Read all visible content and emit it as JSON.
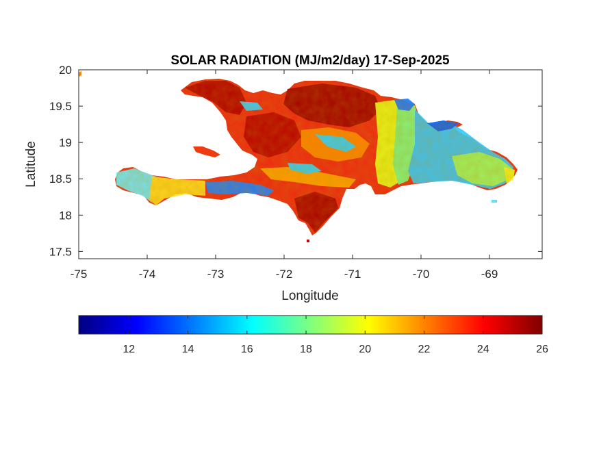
{
  "figure": {
    "title": "SOLAR RADIATION (MJ/m2/day) 17-Sep-2025",
    "xlabel": "Longitude",
    "ylabel": "Latitude",
    "xlim": [
      -75,
      -68.23
    ],
    "ylim": [
      17.4,
      20
    ],
    "xticks": [
      "-75",
      "-74",
      "-73",
      "-72",
      "-71",
      "-70",
      "-69"
    ],
    "yticks": [
      "17.5",
      "18",
      "18.5",
      "19",
      "19.5",
      "20"
    ]
  },
  "colorbar": {
    "colormap": "jet",
    "range": [
      10.3,
      26
    ],
    "ticks": [
      "12",
      "14",
      "16",
      "18",
      "20",
      "22",
      "24",
      "26"
    ],
    "colors": [
      "#00007f",
      "#0000ff",
      "#007fff",
      "#00ffff",
      "#7fff7f",
      "#ffff00",
      "#ff7f00",
      "#ff0000",
      "#7f0000"
    ]
  },
  "chart_data": {
    "type": "heatmap",
    "title": "SOLAR RADIATION (MJ/m2/day) 17-Sep-2025",
    "xlabel": "Longitude",
    "ylabel": "Latitude",
    "x_range": [
      -75,
      -68.23
    ],
    "y_range": [
      17.4,
      20
    ],
    "value_range": [
      10.3,
      26
    ],
    "colormap": "jet",
    "grid": false,
    "regions": [
      {
        "name": "",
        "lon": -72.3,
        "lat": 19.3,
        "value": 24.5
      },
      {
        "name": "",
        "lon": -71.5,
        "lat": 19.5,
        "value": 25.5
      },
      {
        "name": "",
        "lon": -72.7,
        "lat": 18.9,
        "value": 23.5
      },
      {
        "name": "",
        "lon": -72.0,
        "lat": 18.5,
        "value": 22.5
      },
      {
        "name": "",
        "lon": -71.4,
        "lat": 17.9,
        "value": 25.0
      },
      {
        "name": "",
        "lon": -73.0,
        "lat": 19.8,
        "value": 24.0
      },
      {
        "name": "",
        "lon": -73.2,
        "lat": 18.4,
        "value": 15.5
      },
      {
        "name": "",
        "lon": -74.2,
        "lat": 18.45,
        "value": 17.5
      },
      {
        "name": "",
        "lon": -70.8,
        "lat": 19.2,
        "value": 19.0
      },
      {
        "name": "",
        "lon": -70.3,
        "lat": 19.4,
        "value": 15.5
      },
      {
        "name": "",
        "lon": -69.8,
        "lat": 18.9,
        "value": 15.0
      },
      {
        "name": "",
        "lon": -69.2,
        "lat": 18.7,
        "value": 16.5
      },
      {
        "name": "",
        "lon": -68.6,
        "lat": 18.6,
        "value": 19.0
      },
      {
        "name": "",
        "lon": -69.8,
        "lat": 19.3,
        "value": 12.0
      },
      {
        "name": "",
        "lon": -73.4,
        "lat": 18.95,
        "value": 22.0
      }
    ]
  }
}
